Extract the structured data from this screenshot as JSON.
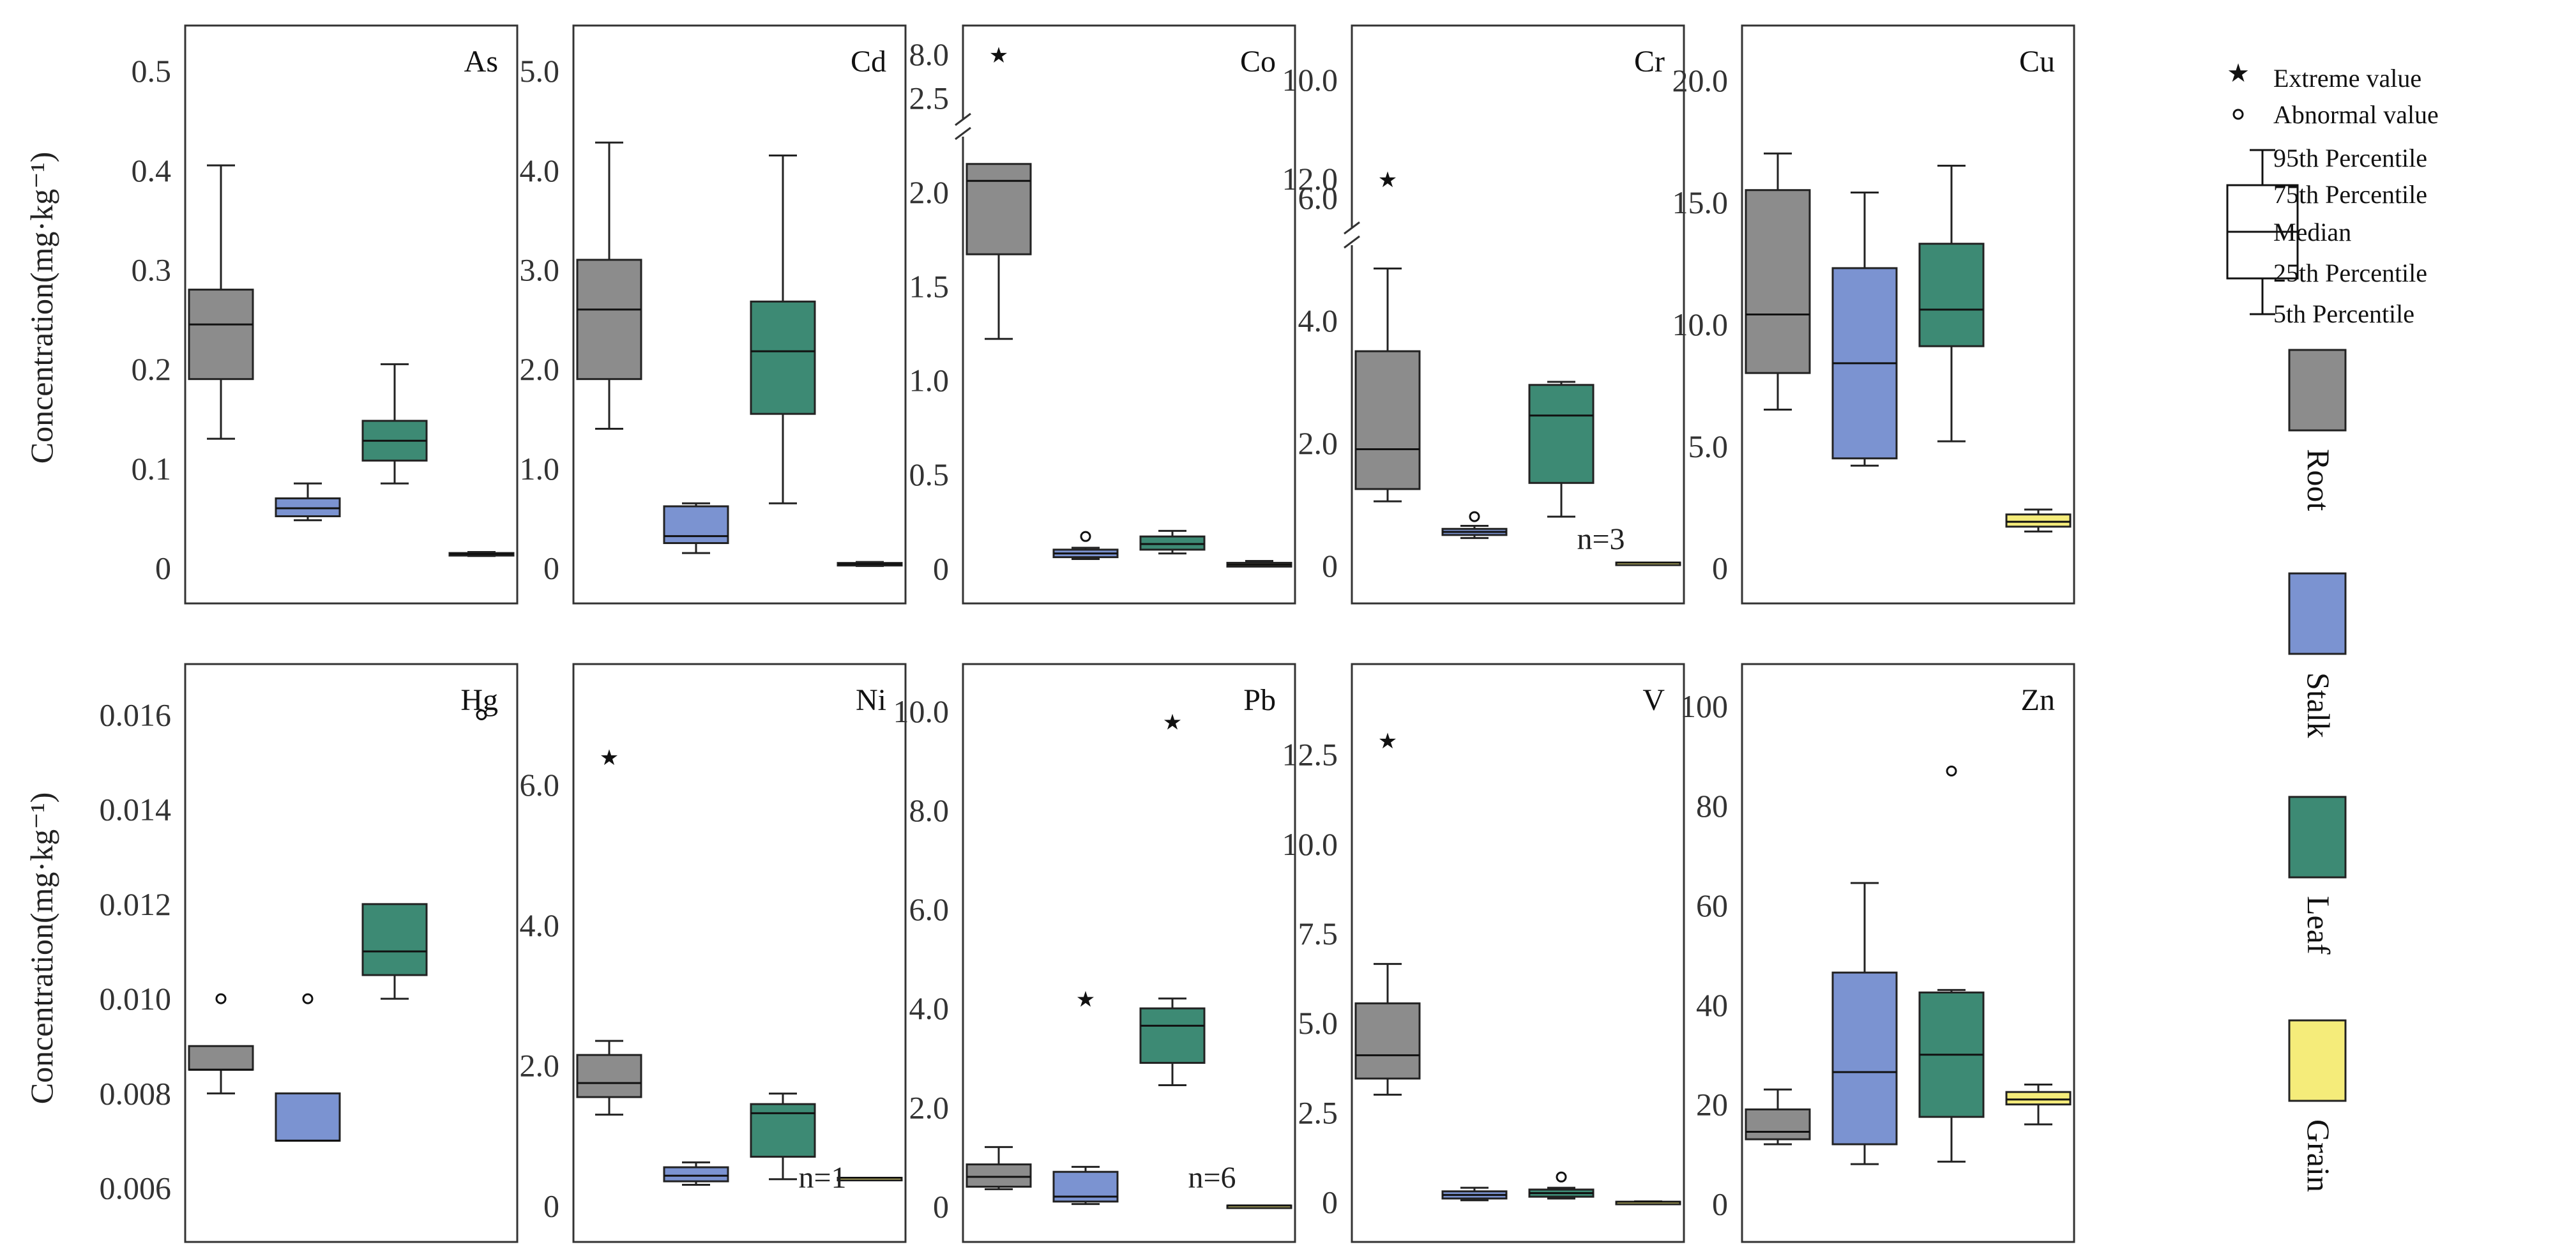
{
  "y_axis_title": "Concentration(mg·kg⁻¹)",
  "legend": {
    "extreme": "Extreme value",
    "abnormal": "Abnormal value",
    "p95": "95th Percentile",
    "p75": "75th Percentile",
    "median": "Median",
    "p25": "25th Percentile",
    "p5": "5th Percentile",
    "categories": [
      {
        "name": "Root",
        "color": "#8c8c8c"
      },
      {
        "name": "Stalk",
        "color": "#7b93d1"
      },
      {
        "name": "Leaf",
        "color": "#3d8a74"
      },
      {
        "name": "Grain",
        "color": "#f5ec7a"
      }
    ]
  },
  "chart_data": [
    {
      "type": "box",
      "title": "As",
      "categories": [
        "Root",
        "Stalk",
        "Leaf",
        "Grain"
      ],
      "ylim": [
        -0.01,
        0.52
      ],
      "ticks": [
        0,
        0.1,
        0.2,
        0.3,
        0.4,
        0.5
      ],
      "tick_labels": [
        "0",
        "0.1",
        "0.2",
        "0.3",
        "0.4",
        "0.5"
      ],
      "boxes": [
        {
          "p5": 0.13,
          "q1": 0.19,
          "median": 0.245,
          "q3": 0.28,
          "p95": 0.405
        },
        {
          "p5": 0.048,
          "q1": 0.052,
          "median": 0.06,
          "q3": 0.07,
          "p95": 0.085
        },
        {
          "p5": 0.085,
          "q1": 0.108,
          "median": 0.128,
          "q3": 0.148,
          "p95": 0.205
        },
        {
          "p5": 0.012,
          "q1": 0.013,
          "median": 0.014,
          "q3": 0.015,
          "p95": 0.016
        }
      ],
      "outliers": []
    },
    {
      "type": "box",
      "title": "Cd",
      "categories": [
        "Root",
        "Stalk",
        "Leaf",
        "Grain"
      ],
      "ylim": [
        -0.1,
        5.2
      ],
      "ticks": [
        0,
        1,
        2,
        3,
        4,
        5
      ],
      "tick_labels": [
        "0",
        "1.0",
        "2.0",
        "3.0",
        "4.0",
        "5.0"
      ],
      "boxes": [
        {
          "p5": 1.4,
          "q1": 1.9,
          "median": 2.6,
          "q3": 3.1,
          "p95": 4.28
        },
        {
          "p5": 0.15,
          "q1": 0.25,
          "median": 0.32,
          "q3": 0.62,
          "p95": 0.65
        },
        {
          "p5": 0.65,
          "q1": 1.55,
          "median": 2.18,
          "q3": 2.68,
          "p95": 4.15
        },
        {
          "p5": 0.02,
          "q1": 0.03,
          "median": 0.04,
          "q3": 0.05,
          "p95": 0.06
        }
      ],
      "outliers": []
    },
    {
      "type": "box",
      "title": "Co",
      "categories": [
        "Root",
        "Stalk",
        "Leaf",
        "Grain"
      ],
      "ylim": [
        -0.05,
        2.75
      ],
      "ticks": [
        0,
        0.5,
        1,
        1.5,
        2,
        2.5
      ],
      "tick_labels": [
        "0",
        "0.5",
        "1.0",
        "1.5",
        "2.0",
        "2.5"
      ],
      "axis_break": {
        "upper_tick": "8.0"
      },
      "boxes": [
        {
          "p5": 1.22,
          "q1": 1.67,
          "median": 2.06,
          "q3": 2.15,
          "p95": 2.15
        },
        {
          "p5": 0.05,
          "q1": 0.06,
          "median": 0.08,
          "q3": 0.1,
          "p95": 0.11
        },
        {
          "p5": 0.08,
          "q1": 0.1,
          "median": 0.13,
          "q3": 0.17,
          "p95": 0.2
        },
        {
          "p5": 0.01,
          "q1": 0.01,
          "median": 0.02,
          "q3": 0.03,
          "p95": 0.04
        }
      ],
      "outliers": [
        {
          "category": "Root",
          "kind": "extreme",
          "value": 8.2
        },
        {
          "category": "Stalk",
          "kind": "abnormal",
          "value": 0.17
        }
      ]
    },
    {
      "type": "box",
      "title": "Cr",
      "categories": [
        "Root",
        "Stalk",
        "Leaf",
        "Grain"
      ],
      "ylim": [
        -0.2,
        8.4
      ],
      "ticks": [
        0,
        2,
        4,
        6
      ],
      "tick_labels": [
        "0",
        "2.0",
        "4.0",
        "6.0"
      ],
      "axis_break": {
        "upper_ticks": [
          "10.0",
          "12.0"
        ]
      },
      "note": "n=3",
      "boxes": [
        {
          "p5": 1.05,
          "q1": 1.25,
          "median": 1.9,
          "q3": 3.5,
          "p95": 4.85
        },
        {
          "p5": 0.45,
          "q1": 0.5,
          "median": 0.55,
          "q3": 0.6,
          "p95": 0.65
        },
        {
          "p5": 0.8,
          "q1": 1.35,
          "median": 2.45,
          "q3": 2.95,
          "p95": 3.0
        },
        {
          "p5": 0.05,
          "q1": 0.05,
          "median": 0.05,
          "q3": 0.05,
          "p95": 0.05
        }
      ],
      "outliers": [
        {
          "category": "Root",
          "kind": "extreme",
          "value": 10.6
        },
        {
          "category": "Stalk",
          "kind": "abnormal",
          "value": 0.8
        }
      ]
    },
    {
      "type": "box",
      "title": "Cu",
      "categories": [
        "Root",
        "Stalk",
        "Leaf",
        "Grain"
      ],
      "ylim": [
        -0.4,
        21.2
      ],
      "ticks": [
        0,
        5,
        10,
        15,
        20
      ],
      "tick_labels": [
        "0",
        "5.0",
        "10.0",
        "15.0",
        "20.0"
      ],
      "boxes": [
        {
          "p5": 6.5,
          "q1": 8.0,
          "median": 10.4,
          "q3": 15.5,
          "p95": 17.0
        },
        {
          "p5": 4.2,
          "q1": 4.5,
          "median": 8.4,
          "q3": 12.3,
          "p95": 15.4
        },
        {
          "p5": 5.2,
          "q1": 9.1,
          "median": 10.6,
          "q3": 13.3,
          "p95": 16.5
        },
        {
          "p5": 1.5,
          "q1": 1.7,
          "median": 1.9,
          "q3": 2.2,
          "p95": 2.4
        }
      ],
      "outliers": []
    },
    {
      "type": "box",
      "title": "Hg",
      "categories": [
        "Root",
        "Stalk",
        "Leaf",
        "Grain"
      ],
      "ylim": [
        0.0054,
        0.0166
      ],
      "ticks": [
        0.006,
        0.008,
        0.01,
        0.012,
        0.014,
        0.016
      ],
      "tick_labels": [
        "0.006",
        "0.008",
        "0.010",
        "0.012",
        "0.014",
        "0.016"
      ],
      "boxes": [
        {
          "p5": 0.008,
          "q1": 0.0085,
          "median": 0.0085,
          "q3": 0.009,
          "p95": 0.009
        },
        {
          "p5": 0.007,
          "q1": 0.007,
          "median": 0.007,
          "q3": 0.008,
          "p95": 0.008
        },
        {
          "p5": 0.01,
          "q1": 0.0105,
          "median": 0.011,
          "q3": 0.012,
          "p95": 0.012
        },
        null
      ],
      "outliers": [
        {
          "category": "Root",
          "kind": "abnormal",
          "value": 0.01
        },
        {
          "category": "Stalk",
          "kind": "abnormal",
          "value": 0.01
        },
        {
          "category": "Grain",
          "kind": "abnormal",
          "value": 0.016
        }
      ]
    },
    {
      "type": "box",
      "title": "Ni",
      "categories": [
        "Root",
        "Stalk",
        "Leaf",
        "Grain"
      ],
      "ylim": [
        -0.15,
        7.4
      ],
      "ticks": [
        0,
        2,
        4,
        6
      ],
      "tick_labels": [
        "0",
        "2.0",
        "4.0",
        "6.0"
      ],
      "note": "n=1",
      "boxes": [
        {
          "p5": 1.3,
          "q1": 1.55,
          "median": 1.75,
          "q3": 2.15,
          "p95": 2.35
        },
        {
          "p5": 0.3,
          "q1": 0.35,
          "median": 0.43,
          "q3": 0.55,
          "p95": 0.62
        },
        {
          "p5": 0.38,
          "q1": 0.7,
          "median": 1.32,
          "q3": 1.45,
          "p95": 1.6
        },
        {
          "p5": 0.4,
          "q1": 0.4,
          "median": 0.4,
          "q3": 0.4,
          "p95": 0.4
        }
      ],
      "outliers": [
        {
          "category": "Root",
          "kind": "extreme",
          "value": 6.4
        }
      ]
    },
    {
      "type": "box",
      "title": "Pb",
      "categories": [
        "Root",
        "Stalk",
        "Leaf",
        "Grain"
      ],
      "ylim": [
        -0.2,
        10.5
      ],
      "ticks": [
        0,
        2,
        4,
        6,
        8,
        10
      ],
      "tick_labels": [
        "0",
        "2.0",
        "4.0",
        "6.0",
        "8.0",
        "10.0"
      ],
      "note": "n=6",
      "boxes": [
        {
          "p5": 0.35,
          "q1": 0.4,
          "median": 0.6,
          "q3": 0.85,
          "p95": 1.2
        },
        {
          "p5": 0.05,
          "q1": 0.1,
          "median": 0.2,
          "q3": 0.7,
          "p95": 0.8
        },
        {
          "p5": 2.45,
          "q1": 2.9,
          "median": 3.65,
          "q3": 4.0,
          "p95": 4.2
        },
        {
          "p5": 0.02,
          "q1": 0.02,
          "median": 0.02,
          "q3": 0.02,
          "p95": 0.02
        }
      ],
      "outliers": [
        {
          "category": "Stalk",
          "kind": "extreme",
          "value": 4.2
        },
        {
          "category": "Leaf",
          "kind": "extreme",
          "value": 9.8
        }
      ]
    },
    {
      "type": "box",
      "title": "V",
      "categories": [
        "Root",
        "Stalk",
        "Leaf",
        "Grain"
      ],
      "ylim": [
        -0.4,
        14.4
      ],
      "ticks": [
        0,
        2.5,
        5,
        7.5,
        10,
        12.5
      ],
      "tick_labels": [
        "0",
        "2.5",
        "5.0",
        "7.5",
        "10.0",
        "12.5"
      ],
      "boxes": [
        {
          "p5": 3.0,
          "q1": 3.45,
          "median": 4.1,
          "q3": 5.55,
          "p95": 6.65
        },
        {
          "p5": 0.05,
          "q1": 0.1,
          "median": 0.2,
          "q3": 0.3,
          "p95": 0.4
        },
        {
          "p5": 0.1,
          "q1": 0.15,
          "median": 0.25,
          "q3": 0.35,
          "p95": 0.4
        },
        {
          "p5": 0.0,
          "q1": 0.0,
          "median": 0.01,
          "q3": 0.01,
          "p95": 0.02
        }
      ],
      "outliers": [
        {
          "category": "Root",
          "kind": "extreme",
          "value": 12.9
        },
        {
          "category": "Leaf",
          "kind": "abnormal",
          "value": 0.7
        }
      ]
    },
    {
      "type": "box",
      "title": "Zn",
      "categories": [
        "Root",
        "Stalk",
        "Leaf",
        "Grain"
      ],
      "ylim": [
        -2.5,
        104
      ],
      "ticks": [
        0,
        20,
        40,
        60,
        80,
        100
      ],
      "tick_labels": [
        "0",
        "20",
        "40",
        "60",
        "80",
        "100"
      ],
      "boxes": [
        {
          "p5": 12.0,
          "q1": 13.0,
          "median": 14.5,
          "q3": 19.0,
          "p95": 23.0
        },
        {
          "p5": 8.0,
          "q1": 12.0,
          "median": 26.5,
          "q3": 46.5,
          "p95": 64.5
        },
        {
          "p5": 8.5,
          "q1": 17.5,
          "median": 30.0,
          "q3": 42.5,
          "p95": 43.0
        },
        {
          "p5": 16.0,
          "q1": 20.0,
          "median": 21.0,
          "q3": 22.5,
          "p95": 24.0
        }
      ],
      "outliers": [
        {
          "category": "Leaf",
          "kind": "abnormal",
          "value": 87
        }
      ]
    }
  ]
}
